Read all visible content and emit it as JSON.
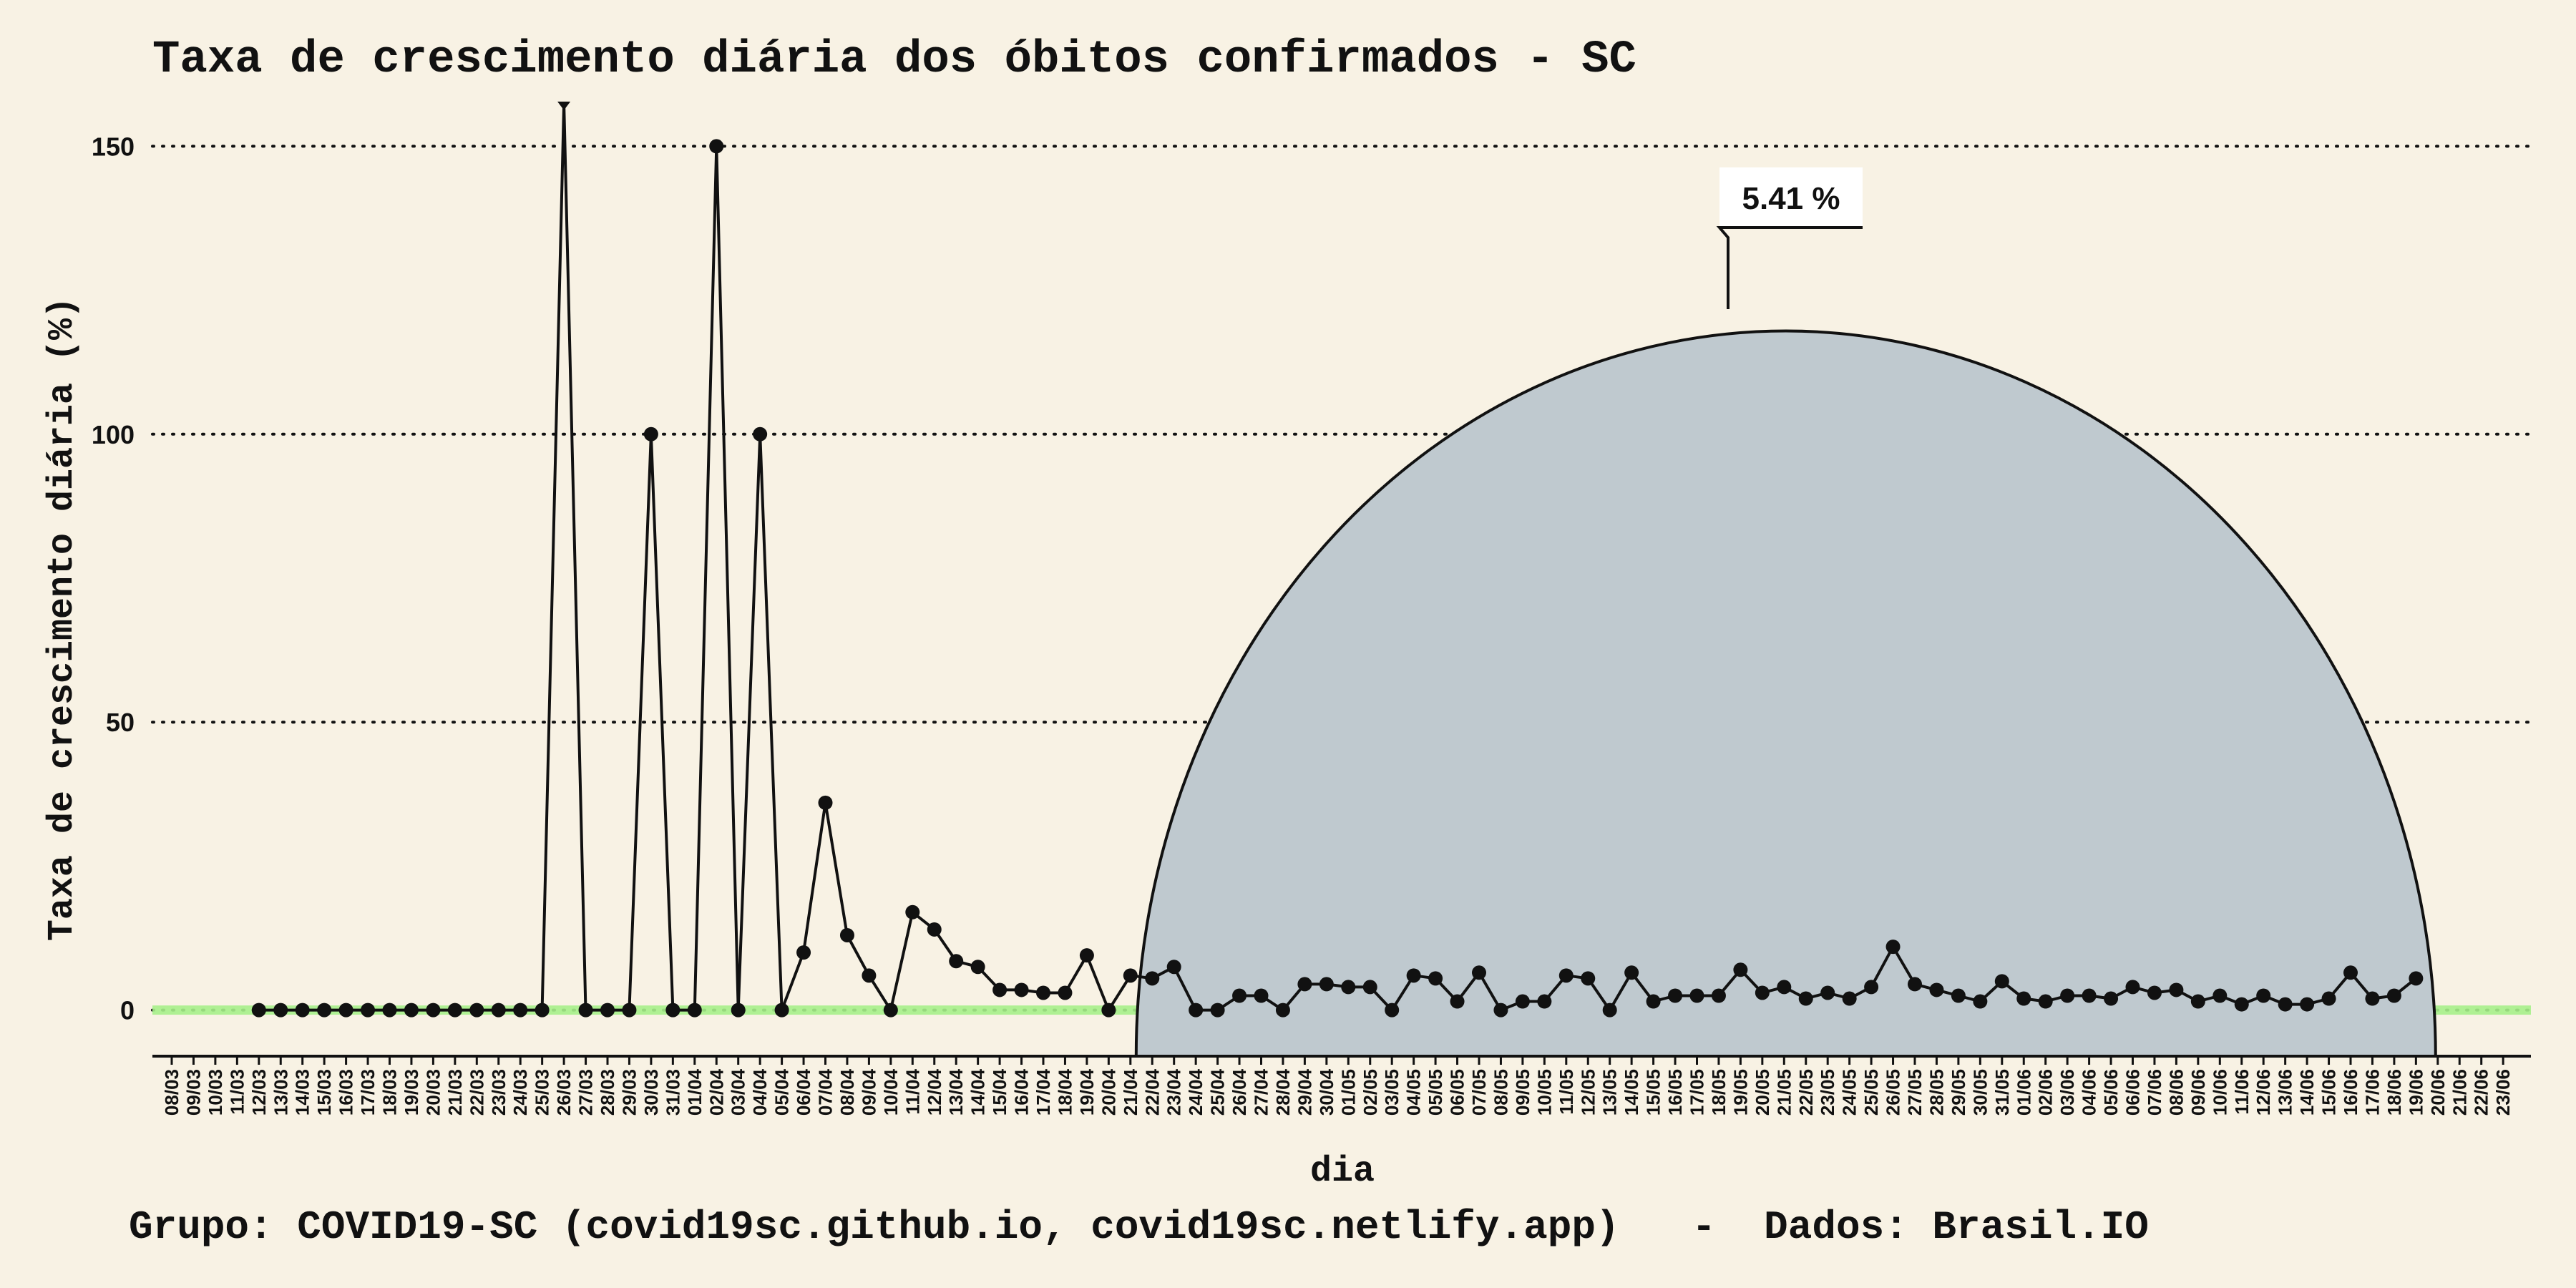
{
  "chart_data": {
    "type": "line",
    "title": "Taxa de crescimento diária dos óbitos confirmados - SC",
    "xlabel": "dia",
    "ylabel": "Taxa de crescimento diária (%)",
    "footer": "Grupo: COVID19-SC (covid19sc.github.io, covid19sc.netlify.app)   -  Dados: Brasil.IO",
    "ylim": [
      -8,
      158
    ],
    "yticks": [
      0,
      50,
      100,
      150
    ],
    "grid": "horizontal dotted",
    "legend": "none",
    "x": [
      "08/03",
      "09/03",
      "10/03",
      "11/03",
      "12/03",
      "13/03",
      "14/03",
      "15/03",
      "16/03",
      "17/03",
      "18/03",
      "19/03",
      "20/03",
      "21/03",
      "22/03",
      "23/03",
      "24/03",
      "25/03",
      "26/03",
      "27/03",
      "28/03",
      "29/03",
      "30/03",
      "31/03",
      "01/04",
      "02/04",
      "03/04",
      "04/04",
      "05/04",
      "06/04",
      "07/04",
      "08/04",
      "09/04",
      "10/04",
      "11/04",
      "12/04",
      "13/04",
      "14/04",
      "15/04",
      "16/04",
      "17/04",
      "18/04",
      "19/04",
      "20/04",
      "21/04",
      "22/04",
      "23/04",
      "24/04",
      "25/04",
      "26/04",
      "27/04",
      "28/04",
      "29/04",
      "30/04",
      "01/05",
      "02/05",
      "03/05",
      "04/05",
      "05/05",
      "06/05",
      "07/05",
      "08/05",
      "09/05",
      "10/05",
      "11/05",
      "12/05",
      "13/05",
      "14/05",
      "15/05",
      "16/05",
      "17/05",
      "18/05",
      "19/05",
      "20/05",
      "21/05",
      "22/05",
      "23/05",
      "24/05",
      "25/05",
      "26/05",
      "27/05",
      "28/05",
      "29/05",
      "30/05",
      "31/05",
      "01/06",
      "02/06",
      "03/06",
      "04/06",
      "05/06",
      "06/06",
      "07/06",
      "08/06",
      "09/06",
      "10/06",
      "11/06",
      "12/06",
      "13/06",
      "14/06",
      "15/06",
      "16/06",
      "17/06",
      "18/06",
      "19/06",
      "20/06",
      "21/06",
      "22/06",
      "23/06"
    ],
    "series": [
      {
        "color": "#111111",
        "values": [
          null,
          null,
          null,
          null,
          0,
          0,
          0,
          0,
          0,
          0,
          0,
          0,
          0,
          0,
          0,
          0,
          0,
          0,
          160,
          0,
          0,
          0,
          100,
          0,
          0,
          150,
          0,
          100,
          0,
          10,
          36,
          13,
          6,
          0,
          17,
          14,
          8.5,
          7.5,
          3.5,
          3.5,
          3,
          3,
          9.5,
          0,
          6,
          5.5,
          7.5,
          0,
          0,
          2.5,
          2.5,
          0,
          4.5,
          4.5,
          4,
          4,
          0,
          6,
          5.5,
          1.5,
          6.5,
          0,
          1.5,
          1.5,
          6,
          5.5,
          0,
          6.5,
          1.5,
          2.5,
          2.5,
          2.5,
          7,
          3,
          4,
          2,
          3,
          2,
          4,
          11,
          4.5,
          3.5,
          2.5,
          1.5,
          5,
          2,
          1.5,
          2.5,
          2.5,
          2,
          4,
          3,
          3.5,
          1.5,
          2.5,
          1,
          2.5,
          1,
          1,
          2,
          6.5,
          2,
          2.5,
          5.5,
          null,
          null,
          null,
          null
        ]
      }
    ],
    "highlight_band": {
      "from": -0.8,
      "to": 0.8,
      "color": "#a6f08a"
    },
    "annotation": {
      "label": "5.41 %",
      "value": 5.41,
      "shape_color": "#bfc9cf"
    }
  }
}
